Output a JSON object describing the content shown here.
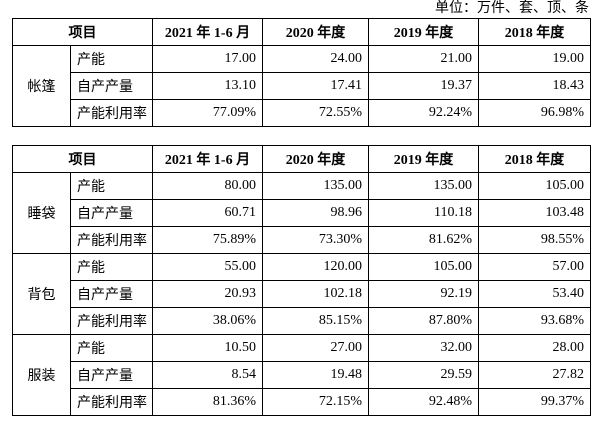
{
  "unit": "单位：万件、套、顶、条",
  "tables": [
    {
      "header": [
        "项目",
        "2021 年 1-6 月",
        "2020 年度",
        "2019 年度",
        "2018 年度"
      ],
      "groups": [
        {
          "name": "帐篷",
          "rows": [
            {
              "item": "产能",
              "values": [
                "17.00",
                "24.00",
                "21.00",
                "19.00"
              ]
            },
            {
              "item": "自产产量",
              "values": [
                "13.10",
                "17.41",
                "19.37",
                "18.43"
              ]
            },
            {
              "item": "产能利用率",
              "values": [
                "77.09%",
                "72.55%",
                "92.24%",
                "96.98%"
              ]
            }
          ]
        }
      ]
    },
    {
      "header": [
        "项目",
        "2021 年 1-6 月",
        "2020 年度",
        "2019 年度",
        "2018 年度"
      ],
      "groups": [
        {
          "name": "睡袋",
          "rows": [
            {
              "item": "产能",
              "values": [
                "80.00",
                "135.00",
                "135.00",
                "105.00"
              ]
            },
            {
              "item": "自产产量",
              "values": [
                "60.71",
                "98.96",
                "110.18",
                "103.48"
              ]
            },
            {
              "item": "产能利用率",
              "values": [
                "75.89%",
                "73.30%",
                "81.62%",
                "98.55%"
              ]
            }
          ]
        },
        {
          "name": "背包",
          "rows": [
            {
              "item": "产能",
              "values": [
                "55.00",
                "120.00",
                "105.00",
                "57.00"
              ]
            },
            {
              "item": "自产产量",
              "values": [
                "20.93",
                "102.18",
                "92.19",
                "53.40"
              ]
            },
            {
              "item": "产能利用率",
              "values": [
                "38.06%",
                "85.15%",
                "87.80%",
                "93.68%"
              ]
            }
          ]
        },
        {
          "name": "服装",
          "rows": [
            {
              "item": "产能",
              "values": [
                "10.50",
                "27.00",
                "32.00",
                "28.00"
              ]
            },
            {
              "item": "自产产量",
              "values": [
                "8.54",
                "19.48",
                "29.59",
                "27.82"
              ]
            },
            {
              "item": "产能利用率",
              "values": [
                "81.36%",
                "72.15%",
                "92.48%",
                "99.37%"
              ]
            }
          ]
        }
      ]
    }
  ]
}
